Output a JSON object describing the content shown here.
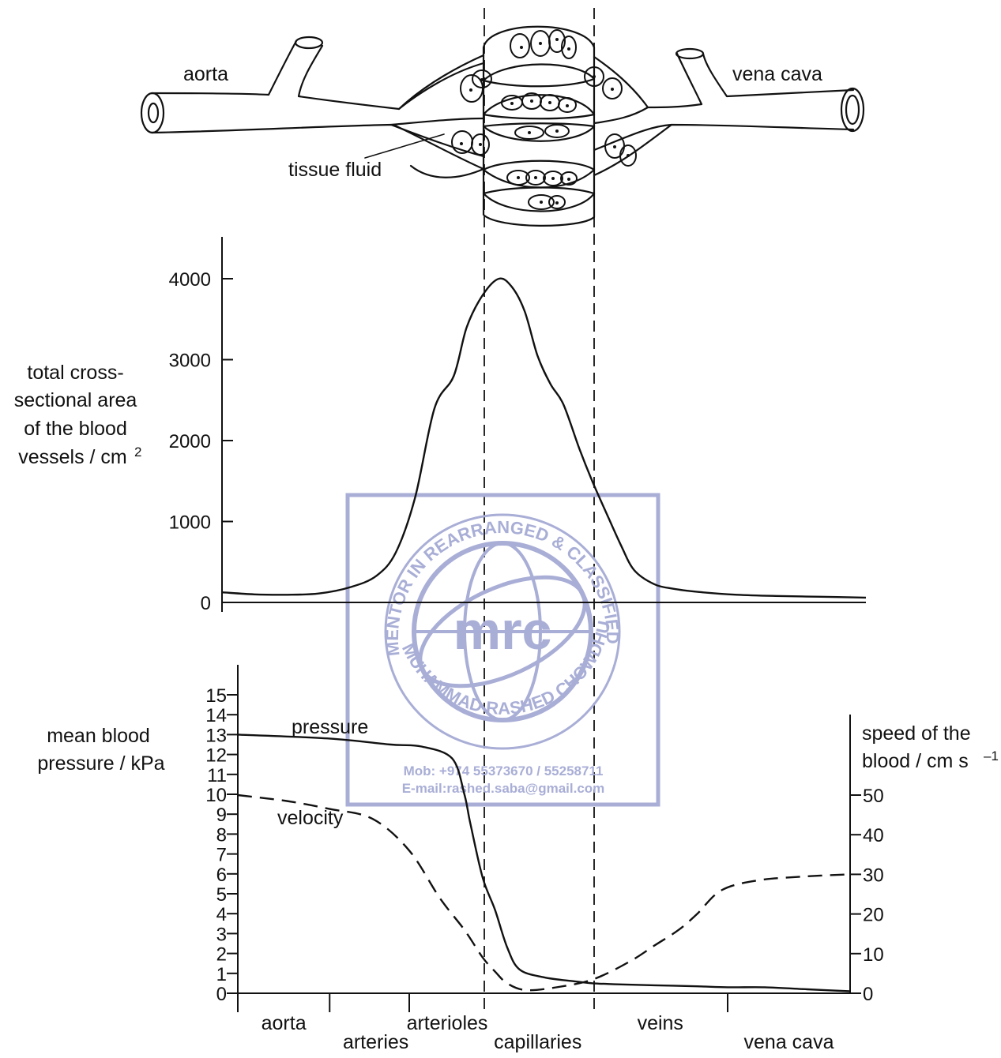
{
  "labels": {
    "aorta": "aorta",
    "vena_cava": "vena cava",
    "tissue_fluid": "tissue fluid"
  },
  "colors": {
    "ink": "#111111",
    "watermark": "#a9aed6"
  },
  "watermark": {
    "logo": "mrc",
    "ring_top": "MENTOR IN REARRANGED & CLASSIFIED",
    "ring_bottom": "MUHAMMAD RASHED CHOWDHURY",
    "phone": "Mob:  +974 55373670 / 55258711",
    "email": "E-mail:rashed.saba@gmail.com"
  },
  "chart_data": [
    {
      "type": "line",
      "ylabel": [
        "total cross-",
        "sectional area",
        "of the blood",
        "vessels / cm",
        "2"
      ],
      "yticks": [
        0,
        1000,
        2000,
        3000,
        4000
      ],
      "ylim": [
        0,
        4500
      ],
      "xlim": [
        0,
        100
      ],
      "series": [
        {
          "x": [
            0,
            5,
            10,
            15,
            20,
            24,
            27,
            30,
            33,
            36,
            38,
            40.5,
            43,
            45,
            47,
            49,
            51,
            53,
            55.5,
            57.5,
            60,
            62,
            64,
            67,
            70,
            74,
            80,
            86,
            93,
            100
          ],
          "y": [
            125,
            100,
            95,
            110,
            190,
            330,
            620,
            1300,
            2400,
            2800,
            3400,
            3800,
            4000,
            3900,
            3600,
            3050,
            2700,
            2450,
            1900,
            1500,
            1050,
            700,
            400,
            230,
            170,
            130,
            95,
            80,
            70,
            60
          ]
        }
      ],
      "grid": false
    },
    {
      "type": "line",
      "ylabel": [
        "mean blood",
        "pressure / kPa"
      ],
      "y2label": [
        "speed of the",
        "blood / cm s",
        "–1"
      ],
      "yticks": [
        0,
        1,
        2,
        3,
        4,
        5,
        6,
        7,
        8,
        9,
        10,
        11,
        12,
        13,
        14,
        15
      ],
      "y2ticks": [
        0,
        10,
        20,
        30,
        40,
        50
      ],
      "ylim": [
        0,
        15
      ],
      "y2lim": [
        0,
        50
      ],
      "xlim": [
        0,
        100
      ],
      "categories": [
        "aorta",
        "arteries",
        "arterioles",
        "capillaries",
        "veins",
        "vena cava"
      ],
      "category_ticks": [
        15,
        28,
        40,
        58,
        80,
        100
      ],
      "section_bounds": [
        40,
        58
      ],
      "series": [
        {
          "name": "pressure",
          "x": [
            0,
            15,
            25,
            30,
            35,
            37,
            38,
            40,
            42,
            44,
            46,
            50,
            55,
            58,
            62,
            68,
            75,
            80,
            86,
            93,
            100
          ],
          "y": [
            13,
            12.8,
            12.5,
            12.4,
            11.8,
            10,
            8.5,
            5.8,
            4.2,
            2.3,
            1.2,
            0.8,
            0.6,
            0.5,
            0.45,
            0.4,
            0.35,
            0.3,
            0.3,
            0.2,
            0.1
          ]
        },
        {
          "name": "velocity",
          "axis": "right",
          "x": [
            0,
            8,
            15,
            22,
            28,
            33,
            37,
            40,
            42,
            44,
            47,
            52,
            58,
            64,
            68,
            72,
            75,
            79,
            85,
            93,
            100
          ],
          "y": [
            50,
            48.5,
            46.5,
            44,
            36,
            24,
            16,
            9,
            5.5,
            2.5,
            0.8,
            1.5,
            3.5,
            8,
            12,
            16,
            20,
            26,
            28.5,
            29.5,
            30
          ]
        }
      ],
      "grid": false
    }
  ]
}
